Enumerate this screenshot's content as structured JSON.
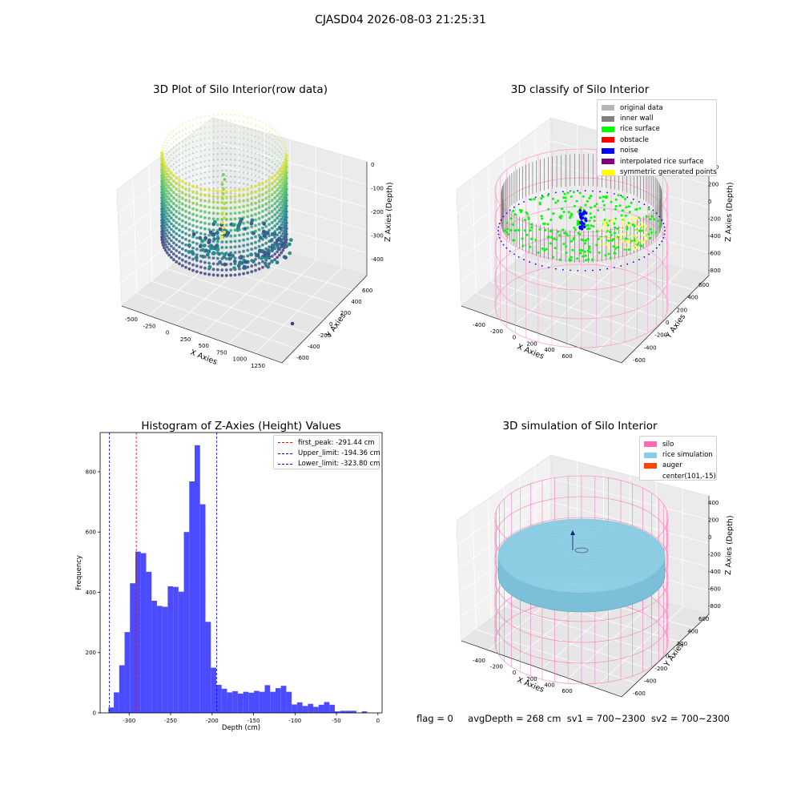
{
  "suptitle": "CJASD04 2026-08-03 21:25:31",
  "panels": {
    "raw": {
      "title": "3D Plot of Silo Interior(row data)",
      "xlabel": "X Axies",
      "ylabel": "Y Axies",
      "zlabel": "Z Axies (Depth)",
      "xticks": [
        "-500",
        "-250",
        "0",
        "250",
        "500",
        "750",
        "1000",
        "1250"
      ],
      "yticks": [
        "-600",
        "-400",
        "-200",
        "0",
        "200",
        "400",
        "600"
      ],
      "zticks": [
        "0",
        "-100",
        "-200",
        "-300",
        "-400"
      ],
      "colormap": "viridis"
    },
    "classify": {
      "title": "3D classify of Silo Interior",
      "xlabel": "X Axies",
      "ylabel": "Y Axies",
      "zlabel": "Z Axies (Depth)",
      "xticks": [
        "-400",
        "-200",
        "0",
        "200",
        "400",
        "600"
      ],
      "yticks": [
        "-600",
        "-400",
        "-200",
        "0",
        "200",
        "400",
        "600"
      ],
      "zticks": [
        "400",
        "200",
        "0",
        "-200",
        "-400",
        "-600",
        "-800"
      ],
      "legend": [
        {
          "label": "original data",
          "color": "#b4b4b4"
        },
        {
          "label": "inner wall",
          "color": "#808080"
        },
        {
          "label": "rice surface",
          "color": "#00ff00"
        },
        {
          "label": "obstacle",
          "color": "#ff0000"
        },
        {
          "label": "noise",
          "color": "#0000ff"
        },
        {
          "label": "interpolated rice surface",
          "color": "#800080"
        },
        {
          "label": "symmetric generated points",
          "color": "#ffff00"
        }
      ]
    },
    "simulation": {
      "title": "3D simulation of Silo Interior",
      "xlabel": "X Axies",
      "ylabel": "Y Axies",
      "zlabel": "Z Axies (Depth)",
      "xticks": [
        "-400",
        "-200",
        "0",
        "200",
        "400",
        "600"
      ],
      "yticks": [
        "-600",
        "-400",
        "-200",
        "0",
        "200",
        "400",
        "600"
      ],
      "zticks": [
        "400",
        "200",
        "0",
        "-200",
        "-400",
        "-600",
        "-800"
      ],
      "legend": [
        {
          "label": "silo",
          "color": "#ff69b4"
        },
        {
          "label": "rice simulation",
          "color": "#87ceeb"
        },
        {
          "label": "auger",
          "color": "#ff4500"
        },
        {
          "label": "center(101,-15)",
          "color": ""
        }
      ]
    }
  },
  "footer": {
    "flag": "flag = 0",
    "avg": "avgDepth = 268 cm",
    "sv1": "sv1 = 700~2300",
    "sv2": "sv2 = 700~2300"
  },
  "chart_data": [
    {
      "type": "histogram",
      "title": "Histogram of Z-Axies (Height) Values",
      "xlabel": "Depth (cm)",
      "ylabel": "Frequency",
      "xlim": [
        -335,
        5
      ],
      "ylim": [
        0,
        930
      ],
      "xticks": [
        -300,
        -250,
        -200,
        -150,
        -100,
        -50,
        0
      ],
      "yticks": [
        0,
        200,
        400,
        600,
        800
      ],
      "bar_color": "#4b4bff",
      "bin_width": 6.5,
      "bins_start": -325,
      "values": [
        18,
        68,
        158,
        268,
        430,
        535,
        530,
        468,
        372,
        355,
        352,
        420,
        418,
        402,
        600,
        768,
        888,
        692,
        302,
        150,
        93,
        80,
        68,
        72,
        64,
        70,
        67,
        73,
        70,
        92,
        70,
        82,
        90,
        70,
        28,
        35,
        23,
        30,
        20,
        27,
        36,
        27,
        5,
        7,
        7,
        7,
        0,
        5
      ],
      "lines": [
        {
          "label": "first_peak: -291.44 cm",
          "x": -291.44,
          "color": "#ff0000"
        },
        {
          "label": "Upper_limit: -194.36 cm",
          "x": -194.36,
          "color": "#0000ff"
        },
        {
          "label": "Lower_limit: -323.80 cm",
          "x": -323.8,
          "color": "#0000ff"
        }
      ],
      "legend_position": "top-right"
    }
  ]
}
